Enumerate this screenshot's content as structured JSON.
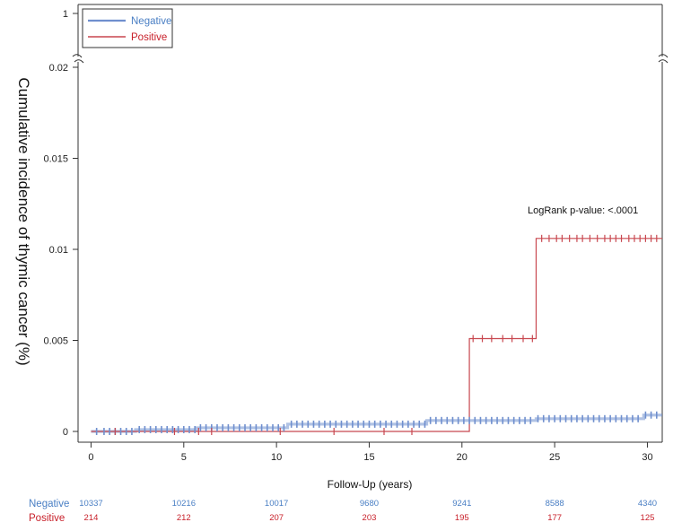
{
  "chart_data": {
    "type": "line",
    "ylabel": "Cumulative incidence of thymic cancer (%)",
    "xlabel": "Follow-Up (years)",
    "x_ticks": [
      0,
      5,
      10,
      15,
      20,
      25,
      30
    ],
    "xlim": [
      -0.7,
      30.8
    ],
    "ylim": [
      0,
      0.02
    ],
    "y_ticks": [
      0,
      0.005,
      0.01,
      0.015,
      0.02
    ],
    "y_tick_labels": [
      "0",
      "0.005",
      "0.01",
      "0.015",
      "0.02"
    ],
    "y_break_tick": "1",
    "annotation": "LogRank p-value: <.0001",
    "legend": {
      "placement": "top-left",
      "entries": [
        "Negative",
        "Positive"
      ]
    },
    "series": [
      {
        "name": "Negative",
        "color": "#6f8fce",
        "steps": [
          [
            0,
            0
          ],
          [
            2.4,
            0.0001
          ],
          [
            5.7,
            0.0002
          ],
          [
            10.6,
            0.0004
          ],
          [
            18.1,
            0.0006
          ],
          [
            24.0,
            0.0007
          ],
          [
            29.8,
            0.0009
          ],
          [
            30.8,
            0.0009
          ]
        ],
        "censor_times": [
          0.3,
          0.7,
          1.0,
          1.3,
          1.6,
          1.9,
          2.2,
          2.6,
          2.9,
          3.2,
          3.5,
          3.8,
          4.1,
          4.4,
          4.7,
          5.0,
          5.3,
          5.6,
          5.9,
          6.2,
          6.5,
          6.8,
          7.1,
          7.4,
          7.7,
          8.0,
          8.3,
          8.6,
          8.9,
          9.2,
          9.5,
          9.8,
          10.1,
          10.4,
          10.8,
          11.1,
          11.4,
          11.7,
          12.0,
          12.3,
          12.6,
          12.9,
          13.2,
          13.5,
          13.8,
          14.1,
          14.4,
          14.7,
          15.0,
          15.3,
          15.6,
          15.9,
          16.2,
          16.5,
          16.8,
          17.1,
          17.4,
          17.7,
          18.0,
          18.3,
          18.6,
          18.9,
          19.2,
          19.5,
          19.8,
          20.1,
          20.4,
          20.7,
          21.0,
          21.3,
          21.6,
          21.9,
          22.2,
          22.5,
          22.8,
          23.1,
          23.4,
          23.7,
          24.1,
          24.4,
          24.7,
          25.0,
          25.3,
          25.6,
          25.9,
          26.2,
          26.5,
          26.8,
          27.1,
          27.4,
          27.7,
          28.0,
          28.3,
          28.6,
          28.9,
          29.2,
          29.5,
          29.9,
          30.2,
          30.5
        ]
      },
      {
        "name": "Positive",
        "color": "#c8474f",
        "steps": [
          [
            0,
            0
          ],
          [
            20.4,
            0.0051
          ],
          [
            24.0,
            0.0106
          ],
          [
            30.8,
            0.0106
          ]
        ],
        "censor_times": [
          1.3,
          4.5,
          5.8,
          6.5,
          10.2,
          13.1,
          15.8,
          17.3,
          20.6,
          21.1,
          21.6,
          22.2,
          22.7,
          23.3,
          23.8,
          24.3,
          24.7,
          25.1,
          25.4,
          25.8,
          26.2,
          26.5,
          26.9,
          27.3,
          27.7,
          28.0,
          28.3,
          28.6,
          29.0,
          29.3,
          29.6,
          29.9,
          30.2,
          30.5
        ]
      }
    ],
    "risk_table": {
      "rows": [
        {
          "label": "Negative",
          "color": "#4a7fc4",
          "values": [
            "10337",
            "10216",
            "10017",
            "9680",
            "9241",
            "8588",
            "4340"
          ]
        },
        {
          "label": "Positive",
          "color": "#c8202a",
          "values": [
            "214",
            "212",
            "207",
            "203",
            "195",
            "177",
            "125"
          ]
        }
      ]
    }
  }
}
